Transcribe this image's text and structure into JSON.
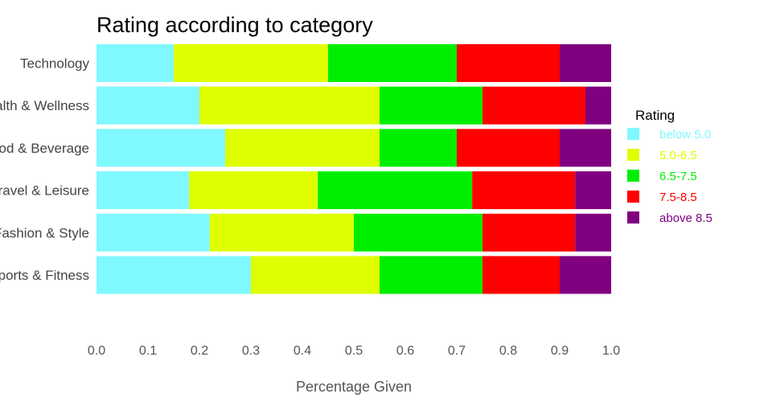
{
  "chart_data": {
    "type": "bar",
    "orientation": "horizontal",
    "stacked": true,
    "title": "Rating according to category",
    "xlabel": "Percentage Given",
    "ylabel": "",
    "xlim": [
      0,
      1.0
    ],
    "x_ticks": [
      "0.0",
      "0.1",
      "0.2",
      "0.3",
      "0.4",
      "0.5",
      "0.6",
      "0.7",
      "0.8",
      "0.9",
      "1.0"
    ],
    "grid": false,
    "legend_title": "Rating",
    "legend_position": "right",
    "categories": [
      "Technology",
      "Health & Wellness",
      "Food & Beverage",
      "Travel & Leisure",
      "Fashion & Style",
      "Sports & Fitness"
    ],
    "series": [
      {
        "name": "below 5.0",
        "color": "#7ff8ff",
        "values": [
          0.15,
          0.2,
          0.25,
          0.18,
          0.22,
          0.3
        ]
      },
      {
        "name": "5.0-6.5",
        "color": "#dfff00",
        "values": [
          0.3,
          0.35,
          0.3,
          0.25,
          0.28,
          0.25
        ]
      },
      {
        "name": "6.5-7.5",
        "color": "#00ee00",
        "values": [
          0.25,
          0.2,
          0.15,
          0.3,
          0.25,
          0.2
        ]
      },
      {
        "name": "7.5-8.5",
        "color": "#ff0000",
        "values": [
          0.2,
          0.2,
          0.2,
          0.2,
          0.18,
          0.15
        ]
      },
      {
        "name": "above 8.5",
        "color": "#800080",
        "values": [
          0.1,
          0.05,
          0.1,
          0.07,
          0.07,
          0.1
        ]
      }
    ]
  }
}
